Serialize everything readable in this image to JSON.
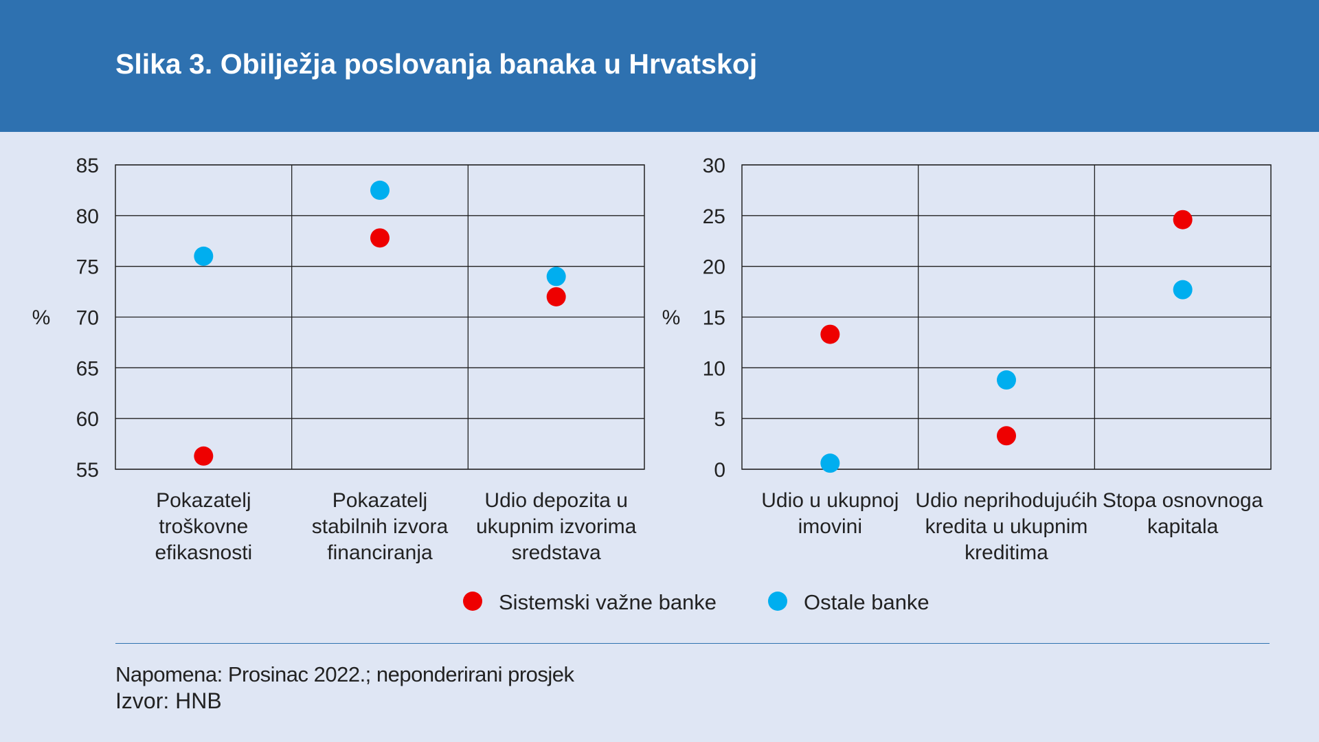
{
  "title": "Slika 3. Obilježja poslovanja banaka u Hrvatskoj",
  "colors": {
    "header": "#2e71b0",
    "background": "#dfe6f4",
    "systemic": "#ee0000",
    "other": "#00aeef"
  },
  "legend": [
    {
      "label": "Sistemski važne banke",
      "color": "#ee0000"
    },
    {
      "label": "Ostale banke",
      "color": "#00aeef"
    }
  ],
  "footnote": {
    "note": "Napomena: Prosinac 2022.; neponderirani prosjek",
    "source": "Izvor: HNB"
  },
  "chart_data": [
    {
      "type": "scatter",
      "ylabel": "%",
      "ylim": [
        55,
        85
      ],
      "yticks": [
        55,
        60,
        65,
        70,
        75,
        80,
        85
      ],
      "categories": [
        [
          "Pokazatelj",
          "troškovne",
          "efikasnosti"
        ],
        [
          "Pokazatelj",
          "stabilnih izvora",
          "financiranja"
        ],
        [
          "Udio depozita u",
          "ukupnim izvorima",
          "sredstava"
        ]
      ],
      "series": [
        {
          "name": "Sistemski važne banke",
          "color": "#ee0000",
          "values": [
            56.3,
            77.8,
            72.0
          ]
        },
        {
          "name": "Ostale banke",
          "color": "#00aeef",
          "values": [
            76.0,
            82.5,
            74.0
          ]
        }
      ],
      "grid": true
    },
    {
      "type": "scatter",
      "ylabel": "%",
      "ylim": [
        0,
        30
      ],
      "yticks": [
        0,
        5,
        10,
        15,
        20,
        25,
        30
      ],
      "categories": [
        [
          "Udio u ukupnoj",
          "imovini"
        ],
        [
          "Udio neprihodujućih",
          "kredita u ukupnim",
          "kreditima"
        ],
        [
          "Stopa osnovnoga",
          "kapitala"
        ]
      ],
      "series": [
        {
          "name": "Sistemski važne banke",
          "color": "#ee0000",
          "values": [
            13.3,
            3.3,
            24.6
          ]
        },
        {
          "name": "Ostale banke",
          "color": "#00aeef",
          "values": [
            0.6,
            8.8,
            17.7
          ]
        }
      ],
      "grid": true
    }
  ]
}
